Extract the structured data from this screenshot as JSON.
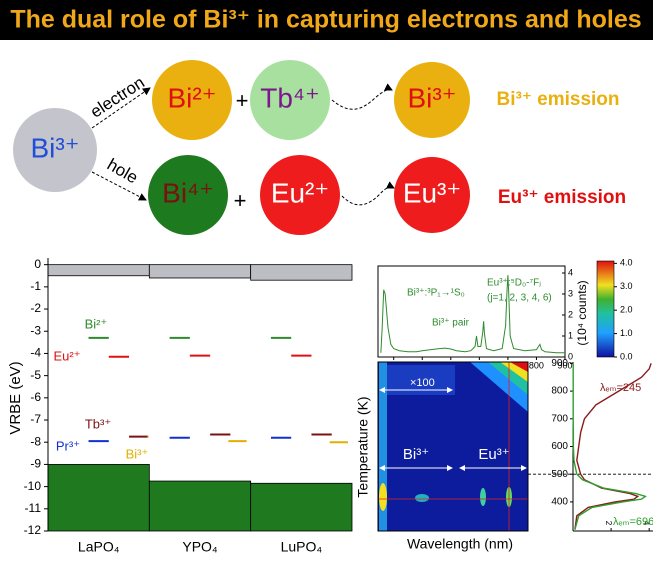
{
  "title": "The dual role of Bi³⁺ in capturing electrons and holes",
  "diagram": {
    "nodes": [
      "Bi³⁺",
      "Bi²⁺",
      "Tb⁴⁺",
      "Bi³⁺",
      "Bi⁴⁺",
      "Eu²⁺",
      "Eu³⁺"
    ],
    "edges": [
      "electron",
      "hole"
    ],
    "operators": [
      "+",
      "+"
    ],
    "emissions": [
      "Bi³⁺ emission",
      "Eu³⁺ emission"
    ]
  },
  "chart_data": [
    {
      "type": "level",
      "ylabel": "VRBE (eV)",
      "categories": [
        "LaPO₄",
        "YPO₄",
        "LuPO₄"
      ],
      "ylim": [
        -12,
        0.3
      ],
      "yticks": [
        0,
        -1,
        -2,
        -3,
        -4,
        -5,
        -6,
        -7,
        -8,
        -9,
        -10,
        -11,
        -12
      ],
      "conduction_band": [
        -0.5,
        -0.6,
        -0.7
      ],
      "conduction_color": "#bdbdc4",
      "valence_band": [
        -9.0,
        -9.75,
        -9.85
      ],
      "valence_color": "#1f7a1f",
      "series": [
        {
          "name": "Bi²⁺",
          "color": "#2e8b2e",
          "values": [
            -3.3,
            -3.3,
            -3.3
          ]
        },
        {
          "name": "Eu²⁺",
          "color": "#e01010",
          "values": [
            -4.15,
            -4.1,
            -4.1
          ]
        },
        {
          "name": "Tb³⁺",
          "color": "#7b1010",
          "values": [
            -7.75,
            -7.65,
            -7.65
          ]
        },
        {
          "name": "Pr³⁺",
          "color": "#1030d0",
          "values": [
            -7.95,
            -7.8,
            -7.8
          ]
        },
        {
          "name": "Bi³⁺",
          "color": "#e0b000",
          "values": [
            -7.75,
            -7.95,
            -8.0
          ]
        }
      ]
    },
    {
      "type": "line",
      "ylabel": "(10⁴ counts)",
      "annotations": [
        "Bi³⁺:³P₁→¹S₀",
        "Bi³⁺ pair",
        "Eu³⁺:⁵D₀-⁷Fⱼ",
        "(j=1, 2, 3, 4, 6)"
      ],
      "xlim": [
        245,
        900
      ],
      "xticks": [
        300,
        400,
        500,
        600,
        700,
        800,
        900
      ],
      "ylim": [
        0,
        4
      ],
      "yticks": [
        0,
        1,
        2,
        3,
        4
      ],
      "color": "#2e8b2e",
      "x": [
        255,
        260,
        265,
        270,
        280,
        290,
        300,
        320,
        350,
        380,
        400,
        430,
        460,
        480,
        500,
        520,
        550,
        570,
        585,
        590,
        595,
        605,
        612,
        615,
        618,
        625,
        650,
        680,
        692,
        697,
        700,
        703,
        708,
        720,
        760,
        800,
        812,
        818,
        830,
        870,
        900
      ],
      "values": [
        0.2,
        1.5,
        3.2,
        3.0,
        1.4,
        0.6,
        0.4,
        0.3,
        0.25,
        0.25,
        0.3,
        0.35,
        0.4,
        0.42,
        0.38,
        0.3,
        0.25,
        0.3,
        0.5,
        1.0,
        0.5,
        0.5,
        1.2,
        1.7,
        1.1,
        0.4,
        0.3,
        0.4,
        1.5,
        3.2,
        3.9,
        3.0,
        1.0,
        0.4,
        0.3,
        0.35,
        0.6,
        0.35,
        0.25,
        0.2,
        0.2
      ],
      "colorbar": {
        "lim": [
          0,
          4.1
        ],
        "ticks": [
          {
            "value": 0,
            "label": "0.0"
          },
          {
            "value": 1,
            "label": "1.0"
          },
          {
            "value": 2,
            "label": "2.0"
          },
          {
            "value": 3,
            "label": "3.0"
          },
          {
            "value": 4,
            "label": "4.0"
          }
        ]
      }
    },
    {
      "type": "heatmap",
      "xlabel": "Wavelength (nm)",
      "ylabel": "Temperature (K)",
      "annotations": [
        "×100",
        "Bi³⁺",
        "Eu³⁺"
      ]
    },
    {
      "type": "line",
      "ylim": [
        295,
        905
      ],
      "yticks": [
        400,
        500,
        600,
        700,
        800,
        900
      ],
      "xlim": [
        0,
        4.2
      ],
      "xticks": [
        2,
        4
      ],
      "reference_lines": [
        500
      ],
      "x": [
        300,
        350,
        380,
        400,
        410,
        420,
        430,
        450,
        480,
        500,
        550,
        600,
        650,
        700,
        750,
        800,
        850,
        880,
        900
      ],
      "series": [
        {
          "name": "λₑₘ=245",
          "color": "#8b1a1a",
          "values": [
            0.1,
            0.2,
            0.8,
            2.2,
            3.2,
            3.4,
            3.0,
            1.5,
            0.6,
            0.4,
            0.2,
            0.3,
            0.4,
            0.6,
            1.2,
            2.4,
            3.6,
            4.0,
            4.1
          ]
        },
        {
          "name": "λₑₘ=696",
          "color": "#2ea02e",
          "values": [
            0.1,
            0.3,
            1.0,
            2.6,
            3.6,
            3.8,
            3.3,
            1.6,
            0.5,
            0.2,
            0.05,
            0.02,
            0.02,
            0.01,
            0.01,
            0.01,
            0.01,
            0.01,
            0.01
          ]
        }
      ]
    }
  ]
}
